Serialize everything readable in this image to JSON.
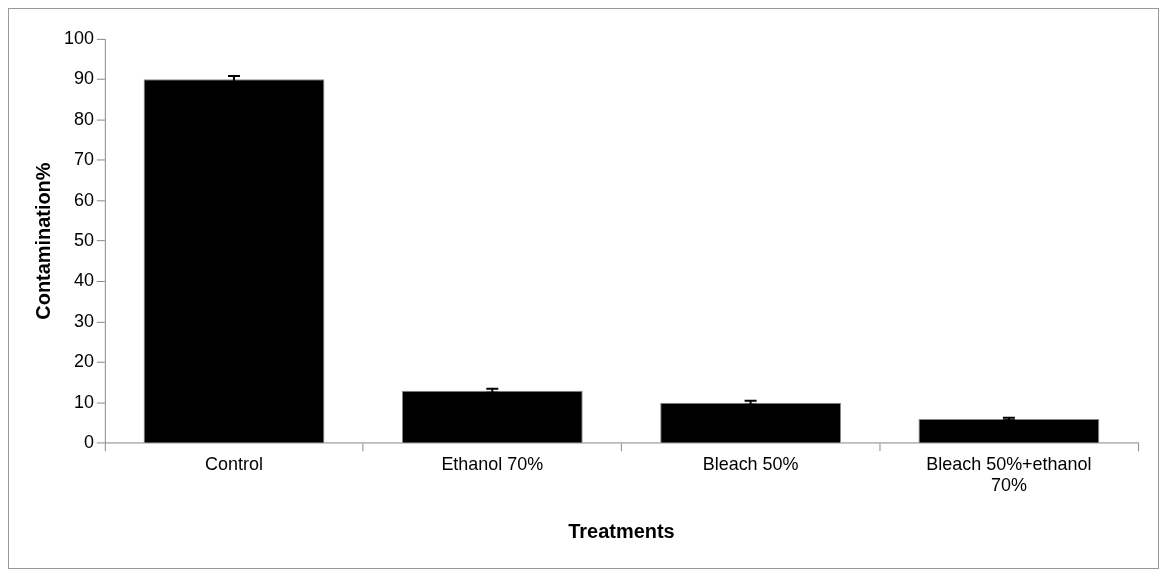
{
  "chart_data": {
    "type": "bar",
    "xlabel": "Treatments",
    "ylabel": "Contamination%",
    "categories": [
      "Control",
      "Ethanol 70%",
      "Bleach 50%",
      "Bleach 50%+ethanol 70%"
    ],
    "values": [
      90,
      13,
      10,
      6
    ],
    "color": "#000000",
    "errors": [
      0.8,
      0.5,
      0.5,
      0.3
    ],
    "ylim": [
      0,
      100
    ],
    "yticks": [
      0,
      10,
      20,
      30,
      40,
      50,
      60,
      70,
      80,
      90,
      100
    ],
    "grid": false,
    "legend": false
  }
}
